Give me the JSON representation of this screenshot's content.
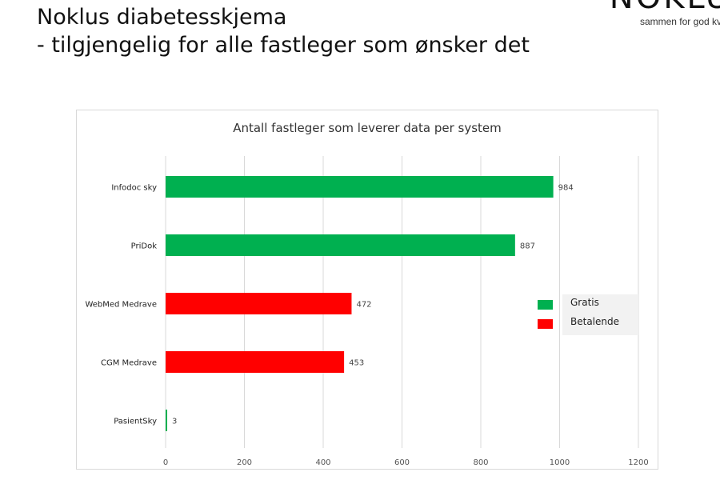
{
  "slide": {
    "title_line1": "Noklus diabetesskjema",
    "title_line2": "- tilgjengelig for alle fastleger som ønsker det"
  },
  "logo": {
    "word": "NOKLU",
    "tagline": "sammen for god kv"
  },
  "colors": {
    "gratis": "#00b050",
    "betalende": "#ff0000",
    "grid": "#d9d9d9",
    "legend_box": "#f2f2f2"
  },
  "chart_data": {
    "type": "bar",
    "orientation": "horizontal",
    "title": "Antall fastleger som leverer data per system",
    "categories": [
      "Infodoc sky",
      "PriDok",
      "WebMed Medrave",
      "CGM Medrave",
      "PasientSky"
    ],
    "values": [
      984,
      887,
      472,
      453,
      3
    ],
    "value_labels": [
      "984",
      "887",
      "472",
      "453",
      "3"
    ],
    "bar_groups": [
      "gratis",
      "gratis",
      "betalende",
      "betalende",
      "gratis"
    ],
    "xlim": [
      0,
      1200
    ],
    "xticks": [
      0,
      200,
      400,
      600,
      800,
      1000,
      1200
    ],
    "xtick_labels": [
      "0",
      "200",
      "400",
      "600",
      "800",
      "1000",
      "1200"
    ],
    "grid": true,
    "legend": {
      "placement": "right",
      "items": [
        {
          "key": "gratis",
          "label": "Gratis"
        },
        {
          "key": "betalende",
          "label": "Betalende"
        }
      ]
    }
  }
}
